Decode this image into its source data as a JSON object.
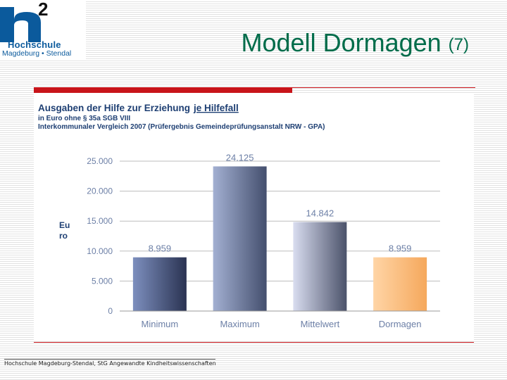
{
  "logo": {
    "superscript": "2",
    "line1": "Hochschule",
    "line2": "Magdeburg • Stendal"
  },
  "slide": {
    "title": "Modell Dormagen",
    "title_suffix": "(7)"
  },
  "footer": "Hochschule Magdeburg-Stendal, StG Angewandte Kindheitswissenschaften",
  "colors": {
    "title": "#006c4a",
    "accent_red": "#c8141a",
    "chart_title": "#1e3f73",
    "logo_blue": "#0b5a9c"
  },
  "chart_data": {
    "type": "bar",
    "title_prefix": "Ausgaben der Hilfe zur Erziehung",
    "title_emphasis": "je Hilfefall",
    "subtitle1": "in Euro ohne § 35a SGB VIII",
    "subtitle2": "Interkommunaler Vergleich 2007 (Prüfergebnis Gemeindeprüfungsanstalt NRW - GPA)",
    "ylabel_line1": "Eu",
    "ylabel_line2": "ro",
    "categories": [
      "Minimum",
      "Maximum",
      "Mittelwert",
      "Dormagen"
    ],
    "values": [
      8959,
      24125,
      14842,
      8959
    ],
    "value_labels": [
      "8.959",
      "24.125",
      "14.842",
      "8.959"
    ],
    "bar_colors": [
      [
        "#7d8fbe",
        "#2a3352"
      ],
      [
        "#a3b0d2",
        "#444f6e"
      ],
      [
        "#d9ddf0",
        "#4b526a"
      ],
      [
        "#ffd5a6",
        "#f5a85c"
      ]
    ],
    "y_ticks": [
      0,
      5000,
      10000,
      15000,
      20000,
      25000
    ],
    "y_tick_labels": [
      "0",
      "5.000",
      "10.000",
      "15.000",
      "20.000",
      "25.000"
    ],
    "ylim": [
      0,
      25000
    ],
    "grid": true
  }
}
